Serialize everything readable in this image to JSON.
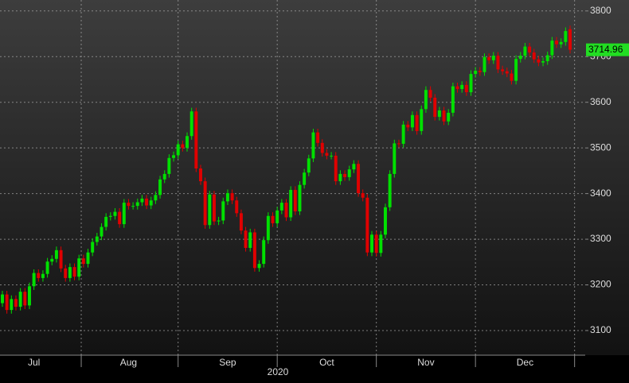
{
  "chart_data": {
    "type": "candlestick",
    "categories": [
      null,
      null,
      null,
      null,
      null,
      null,
      null,
      "Jul",
      null,
      null,
      null,
      null,
      null,
      null,
      null,
      null,
      null,
      null,
      null,
      null,
      null,
      null,
      null,
      null,
      null,
      null,
      null,
      null,
      "Aug",
      null,
      null,
      null,
      null,
      null,
      null,
      null,
      null,
      null,
      null,
      null,
      null,
      null,
      null,
      null,
      null,
      null,
      null,
      null,
      null,
      null,
      "Sep",
      null,
      null,
      null,
      null,
      null,
      null,
      null,
      null,
      null,
      null,
      null,
      null,
      null,
      null,
      null,
      null,
      null,
      null,
      null,
      null,
      null,
      "Oct",
      null,
      null,
      null,
      null,
      null,
      null,
      null,
      null,
      null,
      null,
      null,
      null,
      null,
      null,
      null,
      null,
      null,
      null,
      null,
      null,
      null,
      "Nov",
      null,
      null,
      null,
      null,
      null,
      null,
      null,
      null,
      null,
      null,
      null,
      null,
      null,
      null,
      null,
      null,
      null,
      null,
      null,
      null,
      null,
      "Dec",
      null,
      null,
      null,
      null,
      null,
      null,
      null,
      null,
      null,
      null
    ],
    "open": [
      3160,
      3179,
      3145,
      3169,
      3152,
      3185,
      3155,
      3197,
      3226,
      3215,
      3224,
      3251,
      3257,
      3276,
      3236,
      3215,
      3239,
      3218,
      3258,
      3246,
      3271,
      3294,
      3306,
      3327,
      3349,
      3351,
      3360,
      3333,
      3380,
      3373,
      3373,
      3381,
      3389,
      3374,
      3385,
      3397,
      3431,
      3443,
      3478,
      3484,
      3508,
      3500,
      3526,
      3580,
      3455,
      3427,
      3331,
      3398,
      3339,
      3341,
      3383,
      3401,
      3385,
      3357,
      3319,
      3281,
      3315,
      3237,
      3246,
      3298,
      3351,
      3335,
      3363,
      3380,
      3348,
      3408,
      3361,
      3419,
      3446,
      3477,
      3534,
      3511,
      3489,
      3483,
      3483,
      3427,
      3443,
      3436,
      3453,
      3465,
      3401,
      3391,
      3271,
      3310,
      3270,
      3310,
      3370,
      3443,
      3510,
      3509,
      3551,
      3545,
      3572,
      3537,
      3585,
      3627,
      3610,
      3568,
      3582,
      3558,
      3577,
      3635,
      3629,
      3638,
      3622,
      3662,
      3669,
      3666,
      3699,
      3692,
      3702,
      3672,
      3668,
      3663,
      3647,
      3695,
      3702,
      3722,
      3709,
      3694,
      3687,
      3690,
      3703,
      3735,
      3727,
      3732,
      3760
    ],
    "high": [
      3187,
      3187,
      3177,
      3177,
      3193,
      3193,
      3205,
      3234,
      3234,
      3232,
      3259,
      3265,
      3284,
      3284,
      3244,
      3247,
      3247,
      3266,
      3266,
      3279,
      3302,
      3314,
      3335,
      3357,
      3359,
      3368,
      3368,
      3388,
      3388,
      3381,
      3389,
      3397,
      3397,
      3393,
      3405,
      3439,
      3451,
      3486,
      3492,
      3516,
      3516,
      3534,
      3588,
      3588,
      3463,
      3435,
      3406,
      3406,
      3349,
      3391,
      3409,
      3409,
      3393,
      3365,
      3327,
      3323,
      3323,
      3254,
      3306,
      3359,
      3359,
      3371,
      3388,
      3388,
      3416,
      3416,
      3427,
      3454,
      3485,
      3542,
      3542,
      3519,
      3497,
      3491,
      3491,
      3451,
      3451,
      3461,
      3473,
      3473,
      3409,
      3399,
      3318,
      3318,
      3318,
      3378,
      3451,
      3518,
      3518,
      3559,
      3559,
      3580,
      3580,
      3593,
      3635,
      3635,
      3618,
      3590,
      3590,
      3585,
      3643,
      3643,
      3646,
      3646,
      3670,
      3677,
      3677,
      3707,
      3707,
      3710,
      3710,
      3680,
      3676,
      3671,
      3703,
      3710,
      3730,
      3730,
      3717,
      3702,
      3698,
      3711,
      3743,
      3743,
      3740,
      3764,
      3768
    ],
    "low": [
      3152,
      3137,
      3137,
      3144,
      3144,
      3147,
      3147,
      3189,
      3207,
      3207,
      3216,
      3243,
      3249,
      3228,
      3207,
      3207,
      3210,
      3210,
      3238,
      3238,
      3263,
      3286,
      3298,
      3319,
      3341,
      3343,
      3325,
      3325,
      3365,
      3365,
      3365,
      3373,
      3366,
      3366,
      3377,
      3389,
      3423,
      3435,
      3470,
      3476,
      3492,
      3492,
      3518,
      3447,
      3419,
      3323,
      3323,
      3331,
      3331,
      3333,
      3375,
      3377,
      3349,
      3311,
      3273,
      3273,
      3229,
      3229,
      3238,
      3290,
      3327,
      3327,
      3355,
      3340,
      3340,
      3353,
      3353,
      3411,
      3438,
      3469,
      3503,
      3481,
      3475,
      3475,
      3419,
      3419,
      3428,
      3428,
      3445,
      3393,
      3383,
      3263,
      3263,
      3262,
      3262,
      3302,
      3362,
      3435,
      3501,
      3501,
      3537,
      3537,
      3529,
      3529,
      3577,
      3602,
      3560,
      3560,
      3550,
      3550,
      3569,
      3621,
      3621,
      3614,
      3614,
      3654,
      3658,
      3658,
      3684,
      3684,
      3664,
      3660,
      3655,
      3639,
      3639,
      3687,
      3694,
      3701,
      3686,
      3679,
      3679,
      3682,
      3695,
      3719,
      3719,
      3724,
      3707
    ],
    "close": [
      3179,
      3145,
      3169,
      3152,
      3185,
      3155,
      3197,
      3226,
      3215,
      3224,
      3251,
      3257,
      3276,
      3236,
      3215,
      3239,
      3218,
      3258,
      3246,
      3271,
      3294,
      3306,
      3327,
      3349,
      3351,
      3360,
      3333,
      3380,
      3373,
      3373,
      3381,
      3389,
      3374,
      3385,
      3397,
      3431,
      3443,
      3478,
      3484,
      3508,
      3500,
      3526,
      3580,
      3455,
      3427,
      3331,
      3398,
      3339,
      3341,
      3383,
      3401,
      3385,
      3357,
      3319,
      3281,
      3315,
      3237,
      3246,
      3298,
      3351,
      3335,
      3363,
      3380,
      3348,
      3408,
      3361,
      3419,
      3446,
      3477,
      3534,
      3511,
      3489,
      3483,
      3483,
      3427,
      3443,
      3436,
      3453,
      3465,
      3401,
      3391,
      3271,
      3310,
      3270,
      3310,
      3370,
      3443,
      3510,
      3509,
      3551,
      3545,
      3572,
      3537,
      3585,
      3627,
      3610,
      3568,
      3582,
      3558,
      3577,
      3635,
      3629,
      3638,
      3622,
      3662,
      3669,
      3666,
      3699,
      3692,
      3702,
      3672,
      3668,
      3663,
      3647,
      3695,
      3702,
      3722,
      3709,
      3694,
      3687,
      3690,
      3703,
      3735,
      3727,
      3732,
      3756,
      3714.96
    ],
    "up_color": "#00e000",
    "down_color": "#e00000",
    "last_color": "#22dd22",
    "year_label": "2020",
    "ylim": [
      3046,
      3824
    ],
    "yticks": [
      3100,
      3200,
      3300,
      3400,
      3500,
      3600,
      3700,
      3800
    ],
    "grid": true
  }
}
